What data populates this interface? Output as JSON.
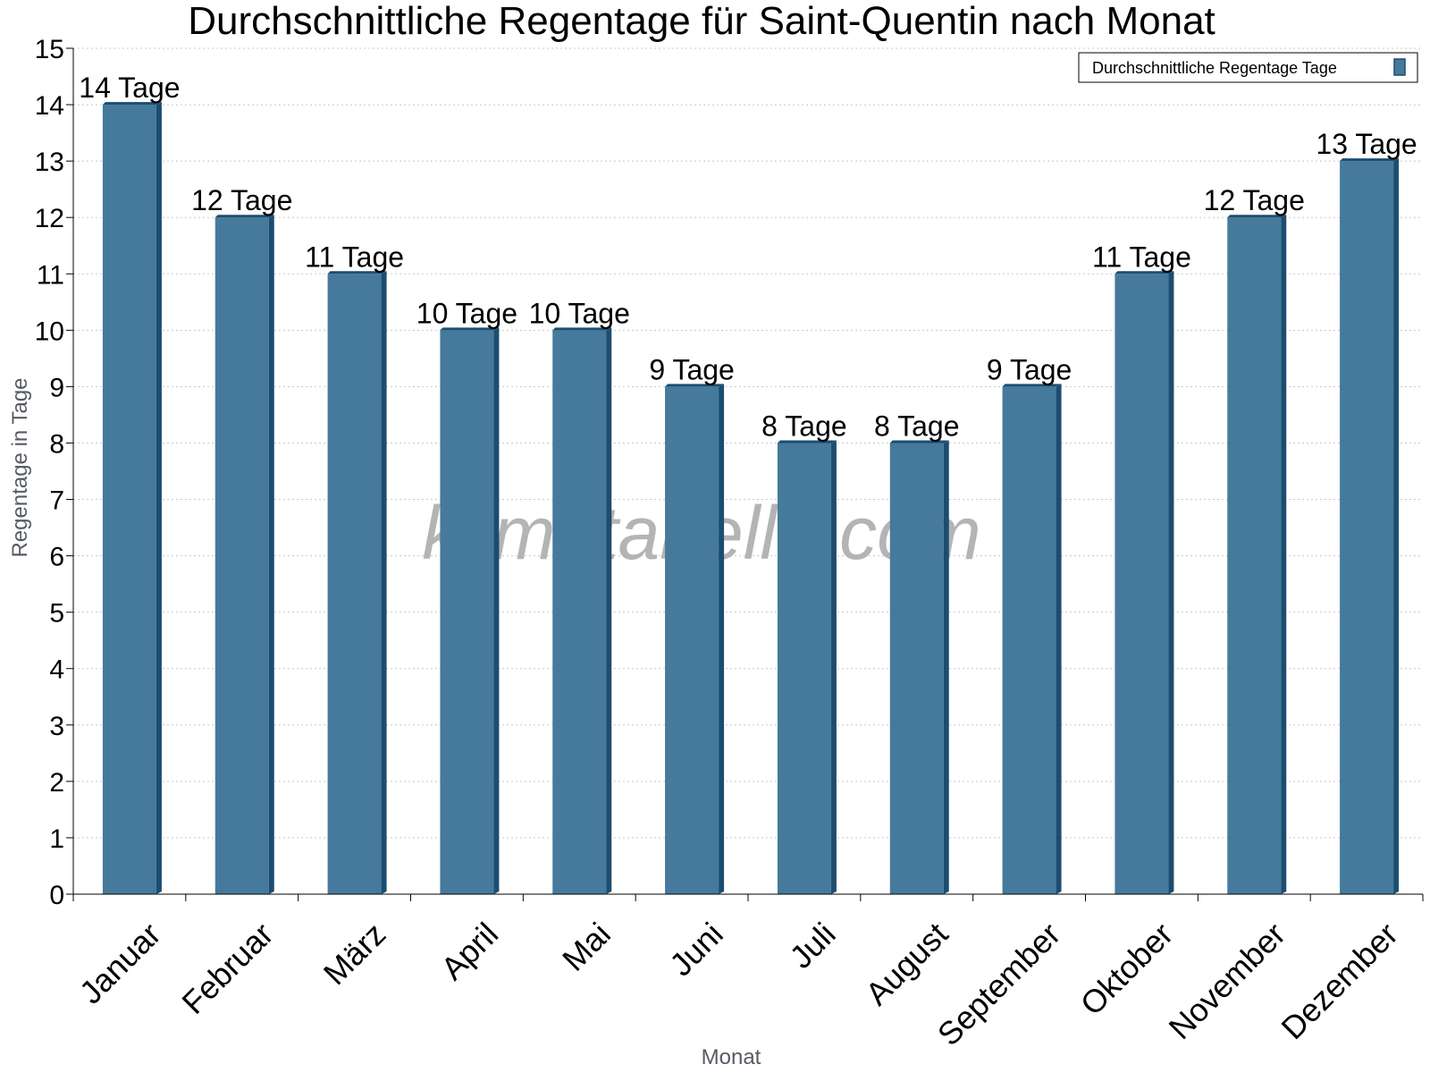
{
  "watermark": "klimatabelle.com",
  "colors": {
    "bar": "#457a9c",
    "bar_side": "#1c4d70",
    "bar_top": "#1c4d70",
    "grid": "#c8c8c8"
  },
  "chart_data": {
    "type": "bar",
    "title": "Durchschnittliche Regentage für Saint-Quentin nach Monat",
    "xlabel": "Monat",
    "ylabel": "Regentage in Tage",
    "ylim": [
      0,
      15
    ],
    "yticks": [
      "0",
      "1",
      "2",
      "3",
      "4",
      "5",
      "6",
      "7",
      "8",
      "9",
      "10",
      "11",
      "12",
      "13",
      "14",
      "15"
    ],
    "categories": [
      "Januar",
      "Februar",
      "März",
      "April",
      "Mai",
      "Juni",
      "Juli",
      "August",
      "September",
      "Oktober",
      "November",
      "Dezember"
    ],
    "series": [
      {
        "name": "Durchschnittliche Regentage Tage",
        "values": [
          14,
          12,
          11,
          10,
          10,
          9,
          8,
          8,
          9,
          11,
          12,
          13
        ]
      }
    ],
    "data_labels": [
      "14 Tage",
      "12 Tage",
      "11 Tage",
      "10 Tage",
      "10 Tage",
      "9 Tage",
      "8 Tage",
      "8 Tage",
      "9 Tage",
      "11 Tage",
      "12 Tage",
      "13 Tage"
    ],
    "grid": true,
    "legend_position": "top-right"
  }
}
